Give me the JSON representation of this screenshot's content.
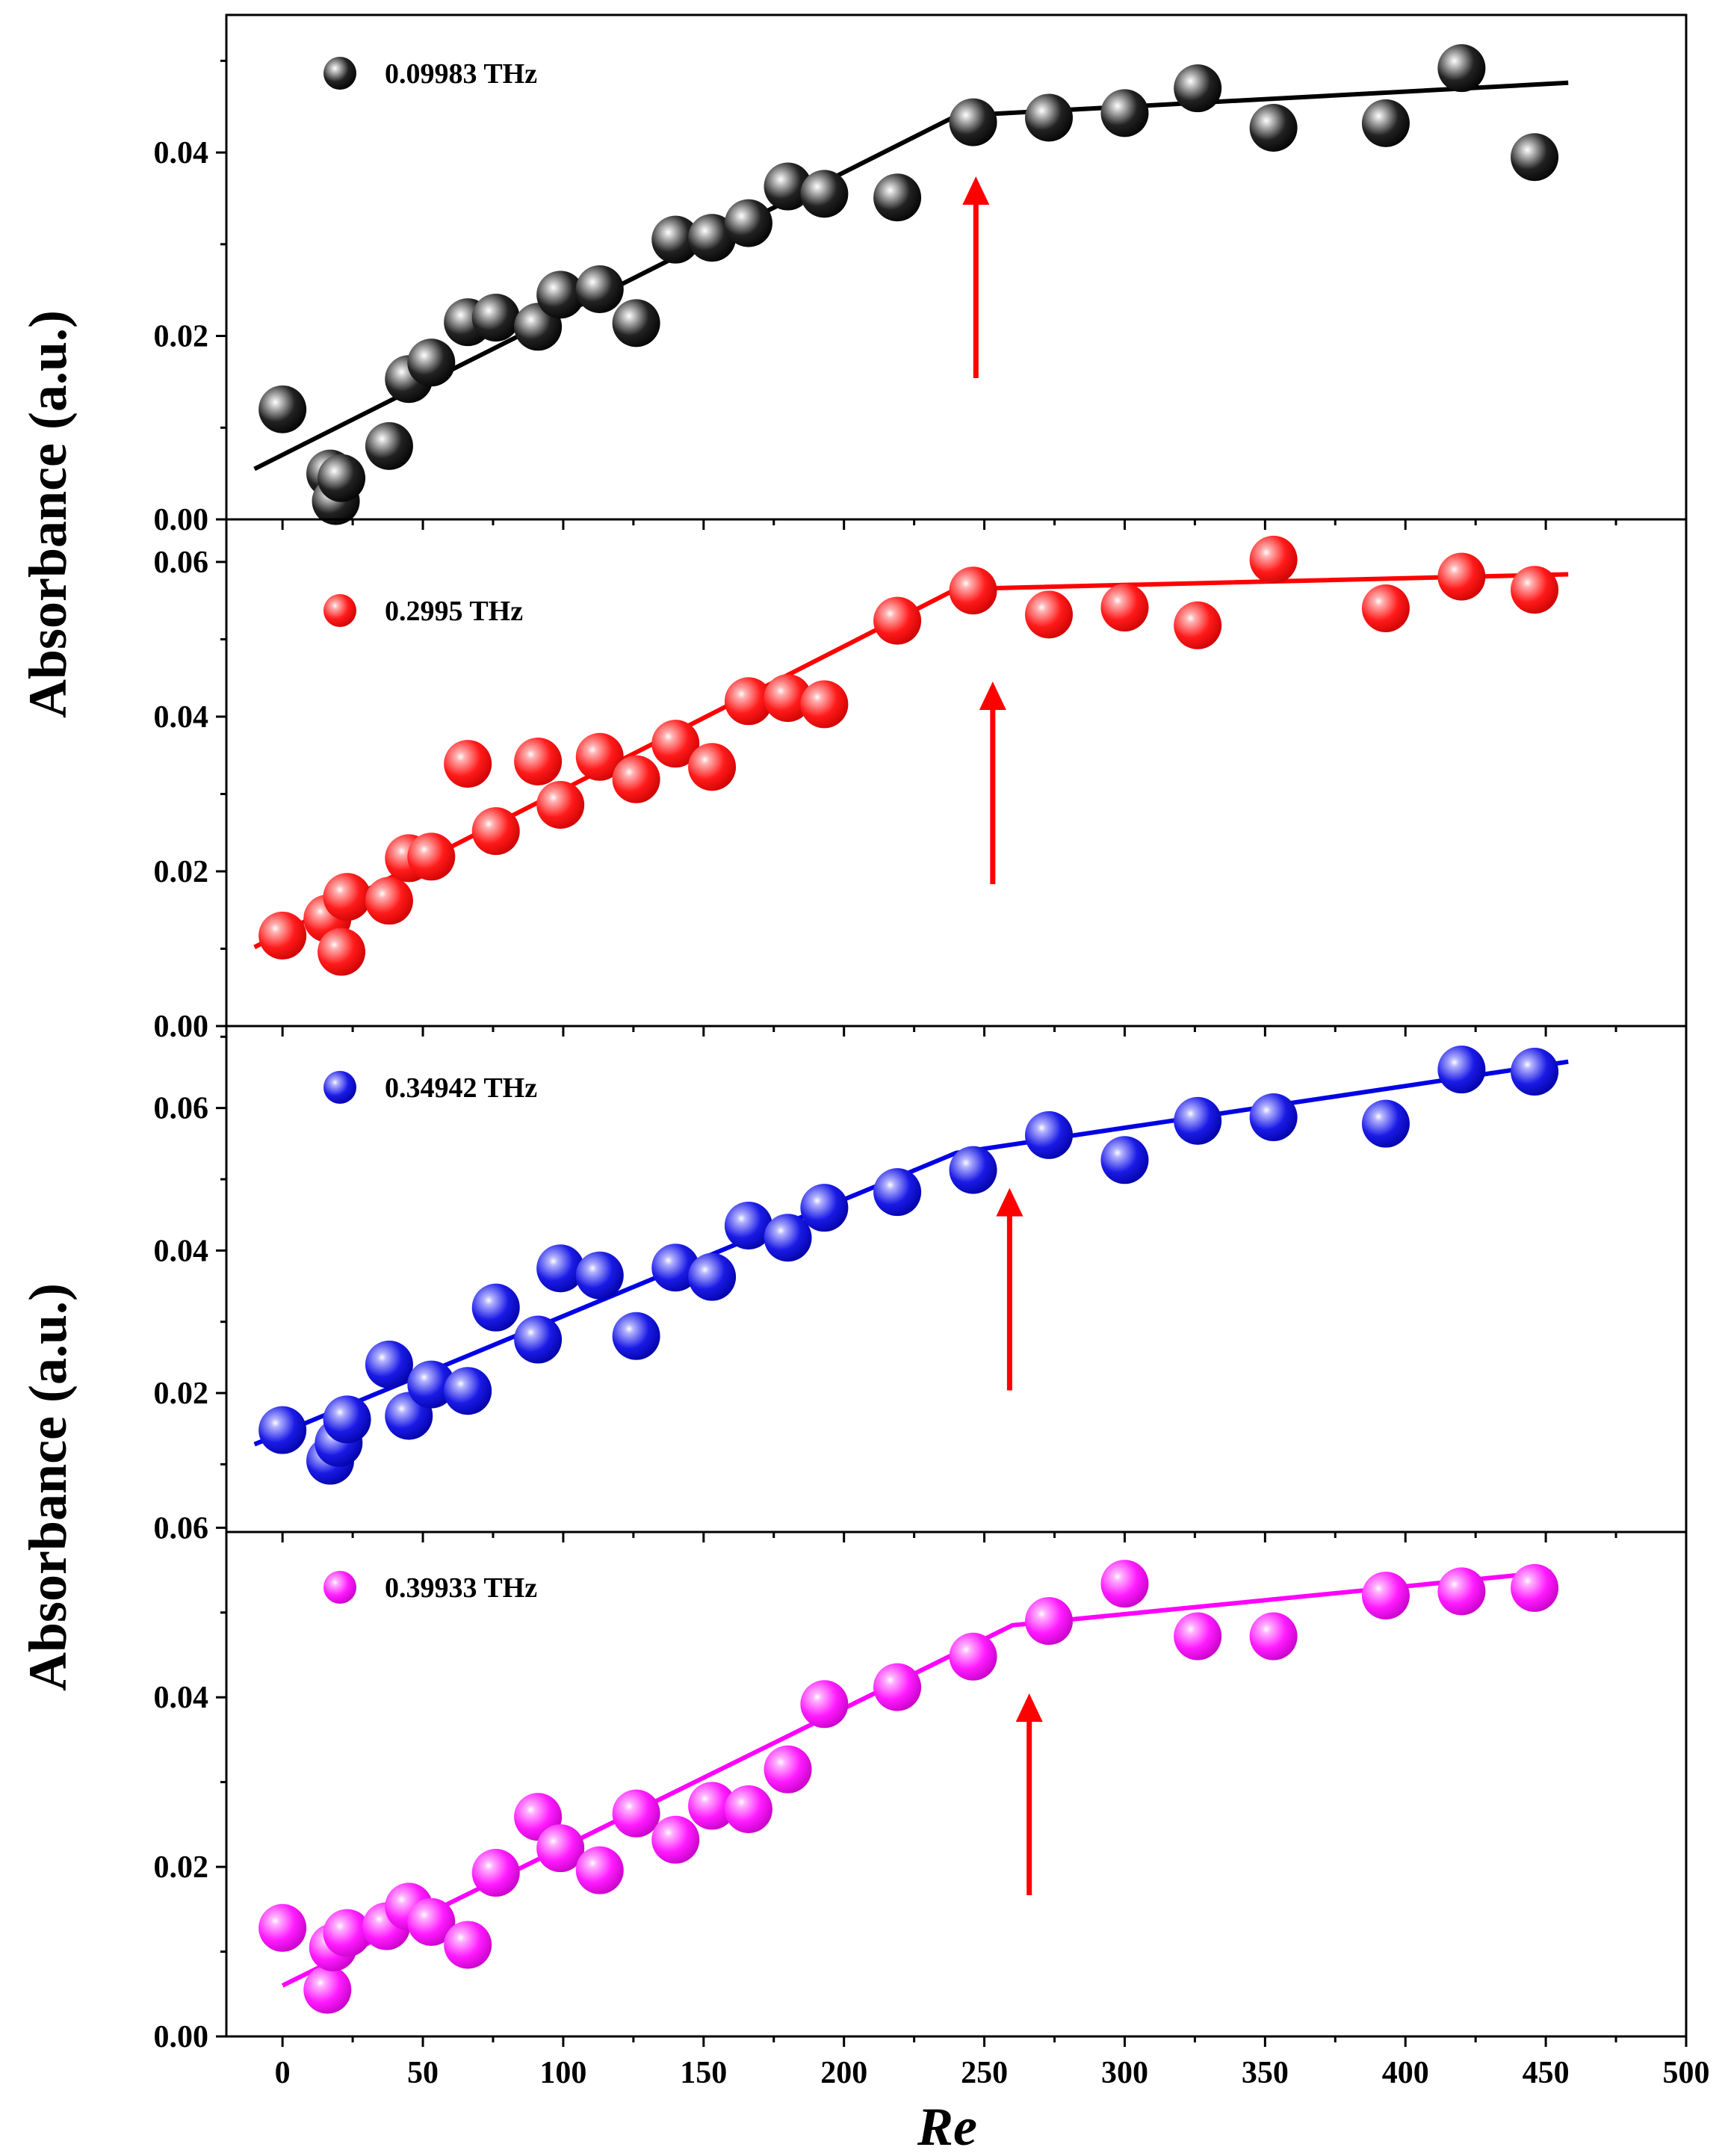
{
  "chart_data": {
    "type": "scatter",
    "xlabel": "Re",
    "ylabel": "Absorbance (a.u.)",
    "xlim": [
      -20,
      500
    ],
    "xticks": [
      0,
      50,
      100,
      150,
      200,
      250,
      300,
      350,
      400,
      450,
      500
    ],
    "x_tick_labels": [
      "0",
      "50",
      "100",
      "150",
      "200",
      "250",
      "300",
      "350",
      "400",
      "450",
      "500"
    ],
    "panels": [
      {
        "name": "0.09983 THz",
        "color": "#000000",
        "ylim": [
          0.0,
          0.055
        ],
        "yticks": [
          0.0,
          0.02,
          0.04
        ],
        "y_tick_labels": [
          "0.00",
          "0.02",
          "0.04"
        ],
        "x": [
          0,
          17,
          19,
          21,
          38,
          45,
          53,
          66,
          76,
          91,
          99,
          113,
          126,
          140,
          153,
          166,
          180,
          193,
          219,
          246,
          273,
          300,
          326,
          353,
          393,
          420,
          446
        ],
        "y": [
          0.012,
          0.005,
          0.002,
          0.0045,
          0.008,
          0.0153,
          0.0171,
          0.0215,
          0.022,
          0.021,
          0.0245,
          0.0251,
          0.0214,
          0.0305,
          0.0307,
          0.0323,
          0.0363,
          0.0355,
          0.0351,
          0.0433,
          0.0438,
          0.0443,
          0.047,
          0.0427,
          0.0432,
          0.0492,
          0.0395
        ],
        "fit": [
          [
            -10,
            0.0055
          ],
          [
            240,
            0.044
          ],
          [
            458,
            0.0476
          ]
        ],
        "arrow_re": 247
      },
      {
        "name": "0.2995 THz",
        "color": "#ff0000",
        "ylim": [
          0.0,
          0.0655
        ],
        "yticks": [
          0.0,
          0.02,
          0.04,
          0.06
        ],
        "y_tick_labels": [
          "0.00",
          "0.02",
          "0.04",
          "0.06"
        ],
        "x": [
          0,
          16,
          21,
          23,
          38,
          45,
          53,
          66,
          76,
          91,
          99,
          113,
          126,
          140,
          153,
          166,
          180,
          193,
          219,
          246,
          273,
          300,
          326,
          353,
          393,
          420,
          446
        ],
        "y": [
          0.0117,
          0.0139,
          0.0096,
          0.0167,
          0.0162,
          0.0217,
          0.0219,
          0.0339,
          0.0252,
          0.0342,
          0.0286,
          0.0348,
          0.0319,
          0.0365,
          0.0335,
          0.042,
          0.0424,
          0.0416,
          0.0524,
          0.0563,
          0.0532,
          0.0541,
          0.0518,
          0.0603,
          0.054,
          0.0581,
          0.0564
        ],
        "fit": [
          [
            -10,
            0.0102
          ],
          [
            240,
            0.0565
          ],
          [
            458,
            0.0584
          ]
        ],
        "arrow_re": 253
      },
      {
        "name": "0.34942 THz",
        "color": "#0000e6",
        "ylim": [
          0.0005,
          0.0715
        ],
        "yticks": [
          0.02,
          0.04,
          0.06
        ],
        "y_tick_labels": [
          "0.02",
          "0.04",
          "0.06"
        ],
        "x": [
          0,
          17,
          20,
          23,
          38,
          45,
          53,
          66,
          76,
          91,
          99,
          113,
          126,
          140,
          153,
          166,
          180,
          193,
          219,
          246,
          273,
          300,
          326,
          353,
          393,
          420,
          446
        ],
        "y": [
          0.0148,
          0.0105,
          0.013,
          0.0163,
          0.024,
          0.0168,
          0.0212,
          0.0203,
          0.032,
          0.0275,
          0.0375,
          0.0365,
          0.028,
          0.0376,
          0.0363,
          0.0435,
          0.0418,
          0.046,
          0.0482,
          0.0513,
          0.0562,
          0.0527,
          0.0582,
          0.0587,
          0.0578,
          0.0654,
          0.0651
        ],
        "fit": [
          [
            -10,
            0.0128
          ],
          [
            240,
            0.0537
          ],
          [
            458,
            0.0665
          ]
        ],
        "arrow_re": 259
      },
      {
        "name": "0.39933 THz",
        "color": "#ff00ff",
        "ylim": [
          0.0,
          0.0595
        ],
        "yticks": [
          0.0,
          0.02,
          0.04,
          0.06
        ],
        "y_tick_labels": [
          "0.00",
          "0.02",
          "0.04",
          "0.06"
        ],
        "x": [
          0,
          16,
          18,
          23,
          37,
          45,
          53,
          66,
          76,
          91,
          99,
          113,
          126,
          140,
          153,
          166,
          180,
          193,
          219,
          246,
          273,
          300,
          326,
          353,
          393,
          420,
          446
        ],
        "y": [
          0.0128,
          0.0055,
          0.0105,
          0.0122,
          0.013,
          0.0153,
          0.0135,
          0.0108,
          0.0193,
          0.0259,
          0.0222,
          0.0196,
          0.0263,
          0.0232,
          0.0272,
          0.0268,
          0.0315,
          0.0392,
          0.0412,
          0.0448,
          0.049,
          0.0534,
          0.0472,
          0.0472,
          0.052,
          0.0525,
          0.0529
        ],
        "fit": [
          [
            0,
            0.006
          ],
          [
            260,
            0.0485
          ],
          [
            452,
            0.0548
          ]
        ],
        "arrow_re": 266
      }
    ]
  }
}
